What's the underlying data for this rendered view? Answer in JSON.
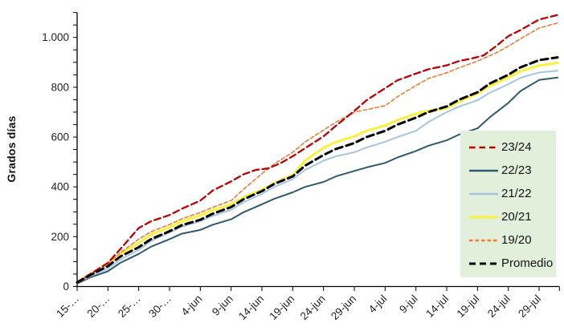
{
  "chart_data": {
    "type": "line",
    "title": "",
    "ylabel": "Grados días",
    "xlabel": "",
    "ylim": [
      0,
      1100
    ],
    "xlim_days": [
      0,
      78.3
    ],
    "grid": false,
    "legend_position": "middle-right-overlay",
    "legend_bg": "#E2EFDA",
    "axis_color": "#000000",
    "tick_label_color": "#1f1f1f",
    "y_minor_tick_step": 50,
    "y_ticks": [
      {
        "value": 0,
        "label": "0"
      },
      {
        "value": 200,
        "label": "200"
      },
      {
        "value": 400,
        "label": "400"
      },
      {
        "value": 600,
        "label": "600"
      },
      {
        "value": 800,
        "label": "800"
      },
      {
        "value": 1000,
        "label": "1.000"
      }
    ],
    "x_ticks": [
      {
        "day": 0,
        "label": "15-…"
      },
      {
        "day": 5,
        "label": "20-…"
      },
      {
        "day": 10,
        "label": "25-…"
      },
      {
        "day": 15,
        "label": "30-…"
      },
      {
        "day": 20,
        "label": "4-jun"
      },
      {
        "day": 25,
        "label": "9-jun"
      },
      {
        "day": 30,
        "label": "14-jun"
      },
      {
        "day": 35,
        "label": "19-jun"
      },
      {
        "day": 40,
        "label": "24-jun"
      },
      {
        "day": 45,
        "label": "29-jun"
      },
      {
        "day": 50,
        "label": "4-jul"
      },
      {
        "day": 55,
        "label": "9-jul"
      },
      {
        "day": 60,
        "label": "14-jul"
      },
      {
        "day": 65,
        "label": "19-jul"
      },
      {
        "day": 70,
        "label": "24-jul"
      },
      {
        "day": 75,
        "label": "29-jul"
      },
      {
        "day": 78.3,
        "label": ""
      }
    ],
    "draw_order": [
      "22/23",
      "21/22",
      "20/21",
      "19/20",
      "23/24",
      "Promedio"
    ],
    "legend_entries": [
      "23/24",
      "22/23",
      "21/22",
      "20/21",
      "19/20",
      "Promedio"
    ],
    "series": [
      {
        "name": "23/24",
        "color": "#C00000",
        "dash": "8 4.5",
        "width": 2.3,
        "legend_dash": "7.5 5",
        "days": [
          0,
          2,
          5,
          7,
          10,
          12,
          15,
          17,
          20,
          22,
          25,
          27,
          29,
          31,
          33,
          35,
          37,
          40,
          42,
          45,
          47,
          50,
          52,
          55,
          57,
          60,
          62,
          64,
          66,
          68,
          70,
          72,
          75,
          78
        ],
        "values": [
          18,
          48,
          95,
          150,
          235,
          262,
          287,
          312,
          345,
          385,
          422,
          450,
          468,
          474,
          495,
          523,
          555,
          603,
          645,
          705,
          748,
          796,
          828,
          855,
          872,
          888,
          905,
          915,
          928,
          965,
          1005,
          1030,
          1072,
          1090
        ]
      },
      {
        "name": "22/23",
        "color": "#2E5A6F",
        "dash": null,
        "width": 2,
        "legend_dash": null,
        "days": [
          0,
          2,
          5,
          7,
          10,
          12,
          15,
          17,
          20,
          22,
          25,
          27,
          30,
          32,
          35,
          37,
          40,
          42,
          45,
          47,
          50,
          52,
          55,
          57,
          60,
          62,
          65,
          67,
          70,
          72,
          75,
          78
        ],
        "values": [
          12,
          35,
          61,
          95,
          131,
          160,
          190,
          212,
          227,
          248,
          270,
          298,
          330,
          352,
          378,
          400,
          420,
          442,
          464,
          478,
          496,
          518,
          544,
          565,
          587,
          610,
          635,
          680,
          737,
          785,
          829,
          839
        ]
      },
      {
        "name": "21/22",
        "color": "#A6C5E0",
        "dash": null,
        "width": 2,
        "legend_dash": null,
        "days": [
          0,
          2,
          5,
          7,
          10,
          12,
          15,
          17,
          20,
          22,
          25,
          27,
          30,
          32,
          35,
          37,
          40,
          42,
          45,
          47,
          50,
          52,
          55,
          57,
          60,
          62,
          65,
          67,
          70,
          72,
          75,
          78
        ],
        "values": [
          14,
          40,
          72,
          108,
          147,
          183,
          217,
          240,
          262,
          283,
          308,
          338,
          372,
          400,
          431,
          468,
          505,
          523,
          539,
          558,
          581,
          600,
          625,
          660,
          700,
          722,
          748,
          778,
          812,
          838,
          859,
          866
        ]
      },
      {
        "name": "20/21",
        "color": "#FAF139",
        "dash": null,
        "width": 3,
        "legend_dash": null,
        "days": [
          0,
          2,
          5,
          7,
          10,
          12,
          15,
          17,
          20,
          22,
          25,
          27,
          30,
          32,
          35,
          37,
          40,
          42,
          45,
          47,
          50,
          52,
          55,
          57,
          60,
          62,
          65,
          67,
          70,
          72,
          75,
          78
        ],
        "values": [
          16,
          48,
          90,
          130,
          175,
          208,
          238,
          262,
          285,
          306,
          330,
          358,
          388,
          415,
          448,
          505,
          557,
          580,
          603,
          625,
          646,
          668,
          694,
          705,
          716,
          742,
          775,
          805,
          839,
          865,
          887,
          898
        ]
      },
      {
        "name": "19/20",
        "color": "#ED7D31",
        "dash": "4.5 3",
        "width": 1.6,
        "legend_dash": "4.5 3",
        "days": [
          0,
          2,
          5,
          7,
          10,
          12,
          15,
          17,
          20,
          22,
          25,
          27,
          30,
          32,
          35,
          37,
          40,
          42,
          45,
          47,
          50,
          52,
          55,
          57,
          60,
          62,
          65,
          68,
          70,
          72,
          75,
          78
        ],
        "values": [
          15,
          45,
          93,
          135,
          190,
          220,
          249,
          272,
          297,
          318,
          345,
          390,
          453,
          492,
          539,
          580,
          628,
          660,
          700,
          710,
          726,
          762,
          807,
          835,
          858,
          878,
          905,
          938,
          965,
          995,
          1038,
          1058
        ]
      },
      {
        "name": "Promedio",
        "color": "#000000",
        "dash": "9 5",
        "width": 3,
        "legend_dash": "8 5",
        "days": [
          0,
          2,
          5,
          7,
          10,
          12,
          15,
          17,
          20,
          22,
          25,
          27,
          30,
          32,
          35,
          37,
          40,
          42,
          45,
          47,
          50,
          52,
          55,
          57,
          60,
          62,
          65,
          67,
          70,
          72,
          75,
          78
        ],
        "values": [
          16,
          44,
          82,
          120,
          158,
          190,
          222,
          246,
          268,
          292,
          319,
          350,
          383,
          412,
          442,
          485,
          528,
          552,
          576,
          600,
          625,
          650,
          678,
          700,
          723,
          750,
          780,
          815,
          850,
          880,
          909,
          920
        ]
      }
    ]
  }
}
